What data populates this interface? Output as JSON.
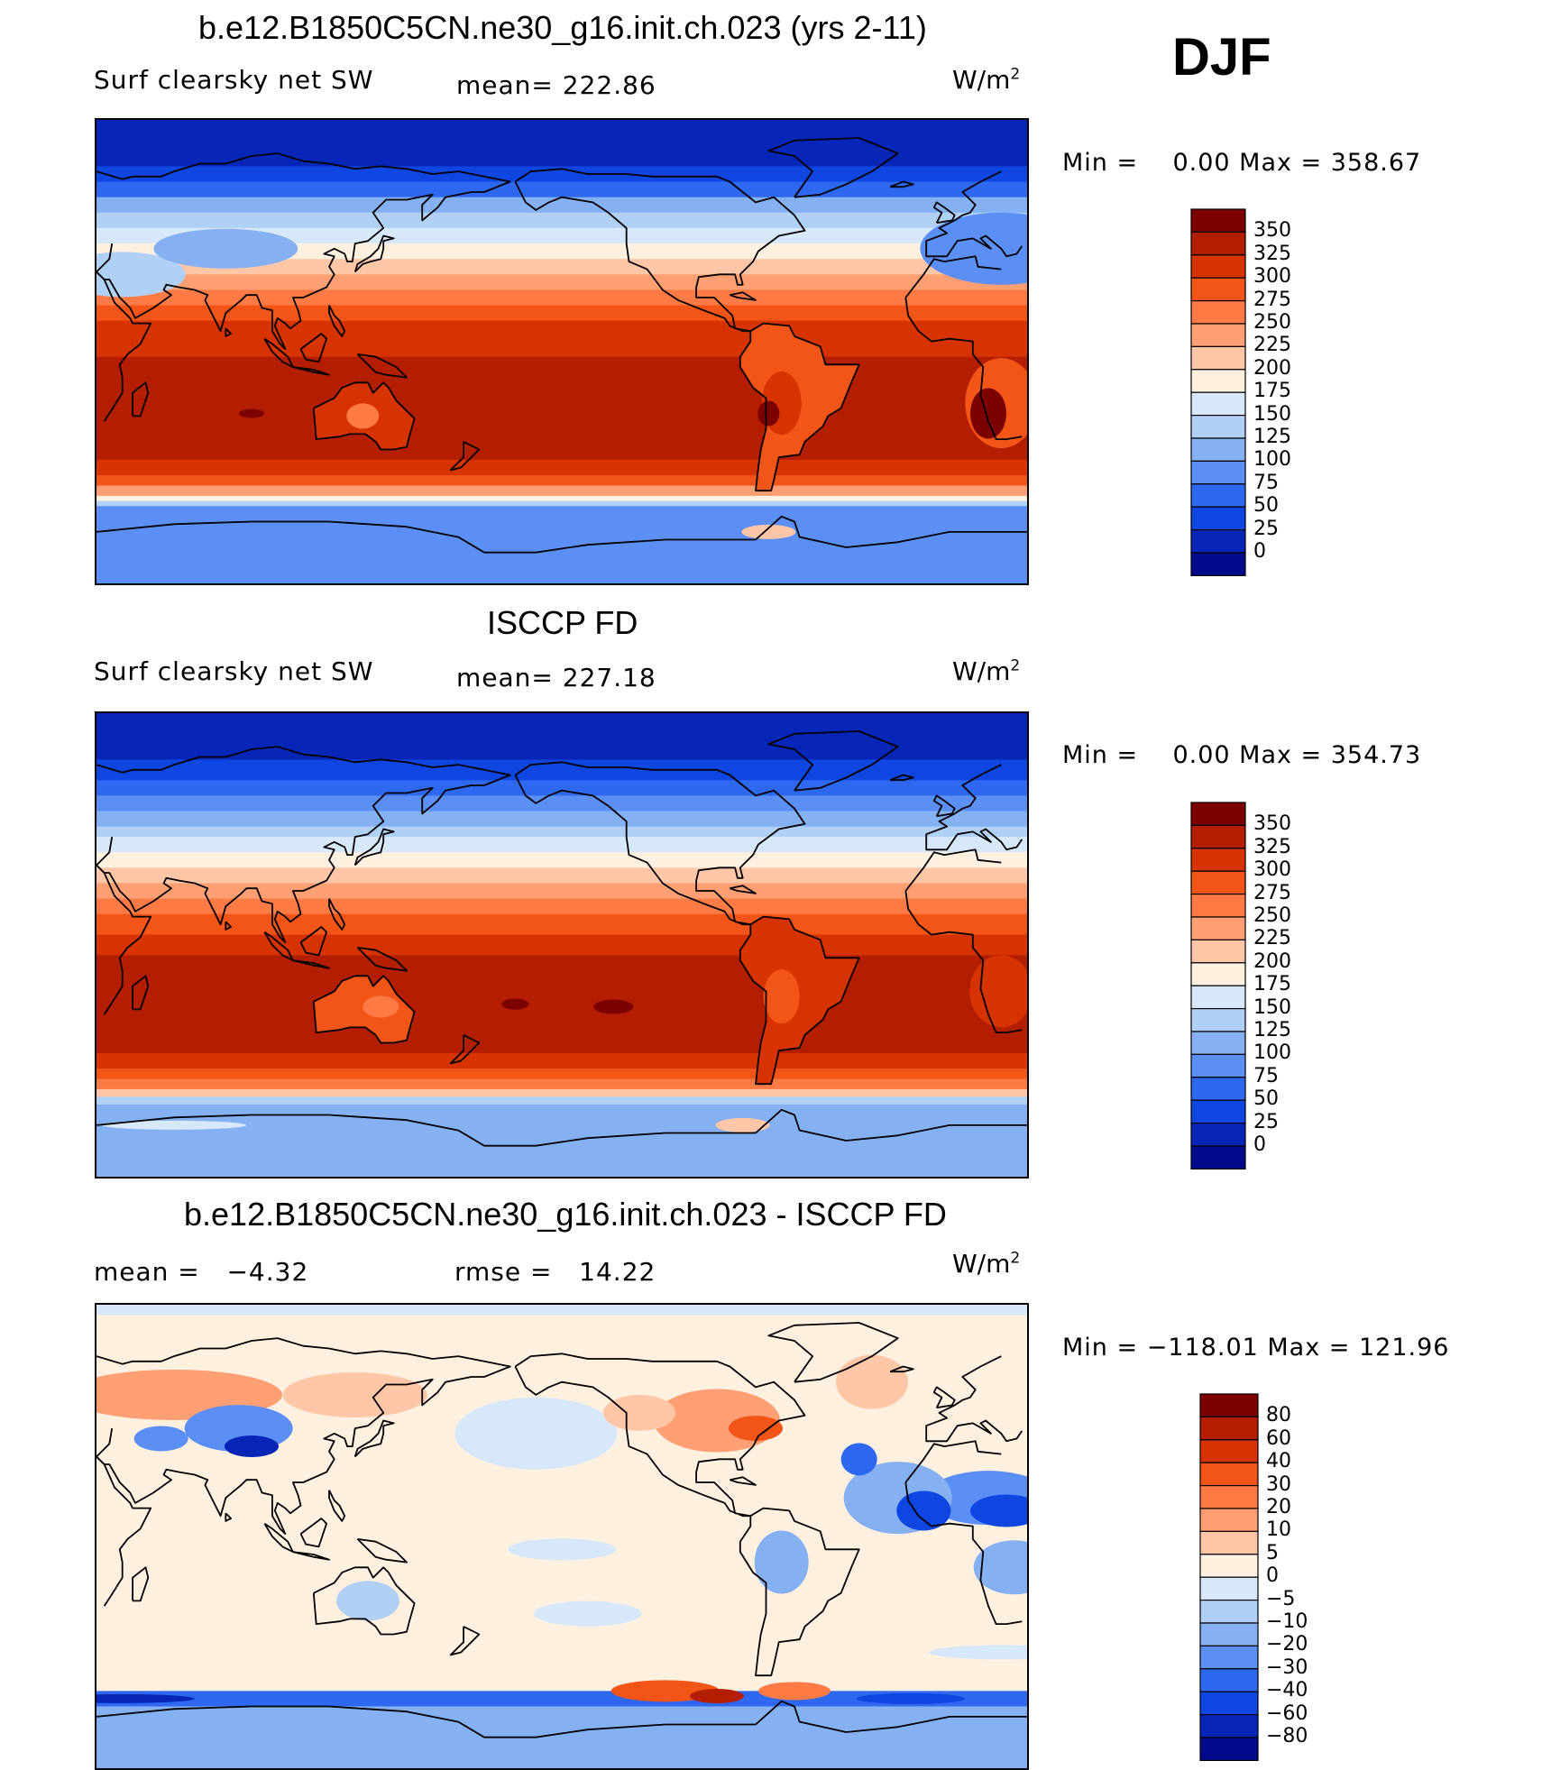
{
  "season": "DJF",
  "panels": [
    {
      "title": "b.e12.B1850C5CN.ne30_g16.init.ch.023 (yrs 2-11)",
      "left_label": "Surf clearsky net SW",
      "center_label": "mean= 222.86",
      "units": "W/m",
      "units_sup": "2",
      "minmax": "Min =    0.00 Max = 358.67",
      "colorbar": {
        "labels": [
          "350",
          "325",
          "300",
          "275",
          "250",
          "225",
          "200",
          "175",
          "150",
          "125",
          "100",
          "75",
          "50",
          "25",
          "0"
        ],
        "colors": [
          "#7d0000",
          "#b31e00",
          "#d63300",
          "#f25517",
          "#ff7a45",
          "#ff9f73",
          "#ffc7a8",
          "#fff0e0",
          "#d6e8fa",
          "#b0d0f5",
          "#85b1f2",
          "#5c8ff5",
          "#2e68f0",
          "#0f45e0",
          "#0726b8",
          "#000a8a"
        ]
      },
      "map_variant": "model"
    },
    {
      "title": "ISCCP FD",
      "left_label": "Surf clearsky net SW",
      "center_label": "mean= 227.18",
      "units": "W/m",
      "units_sup": "2",
      "minmax": "Min =    0.00 Max = 354.73",
      "colorbar": {
        "labels": [
          "350",
          "325",
          "300",
          "275",
          "250",
          "225",
          "200",
          "175",
          "150",
          "125",
          "100",
          "75",
          "50",
          "25",
          "0"
        ],
        "colors": [
          "#7d0000",
          "#b31e00",
          "#d63300",
          "#f25517",
          "#ff7a45",
          "#ff9f73",
          "#ffc7a8",
          "#fff0e0",
          "#d6e8fa",
          "#b0d0f5",
          "#85b1f2",
          "#5c8ff5",
          "#2e68f0",
          "#0f45e0",
          "#0726b8",
          "#000a8a"
        ]
      },
      "map_variant": "obs"
    },
    {
      "title": "b.e12.B1850C5CN.ne30_g16.init.ch.023 - ISCCP FD",
      "left_label": "mean =   −4.32",
      "center_label": "rmse =   14.22",
      "units": "W/m",
      "units_sup": "2",
      "minmax": "Min = −118.01 Max = 121.96",
      "colorbar": {
        "labels": [
          "80",
          "60",
          "40",
          "30",
          "20",
          "10",
          "5",
          "0",
          "−5",
          "−10",
          "−20",
          "−30",
          "−40",
          "−60",
          "−80"
        ],
        "colors": [
          "#7d0000",
          "#b31e00",
          "#d63300",
          "#f25517",
          "#ff7a45",
          "#ff9f73",
          "#ffc7a8",
          "#fff0e0",
          "#d6e8fa",
          "#b0d0f5",
          "#85b1f2",
          "#5c8ff5",
          "#2e68f0",
          "#0f45e0",
          "#0726b8",
          "#000a8a"
        ]
      },
      "map_variant": "diff"
    }
  ]
}
